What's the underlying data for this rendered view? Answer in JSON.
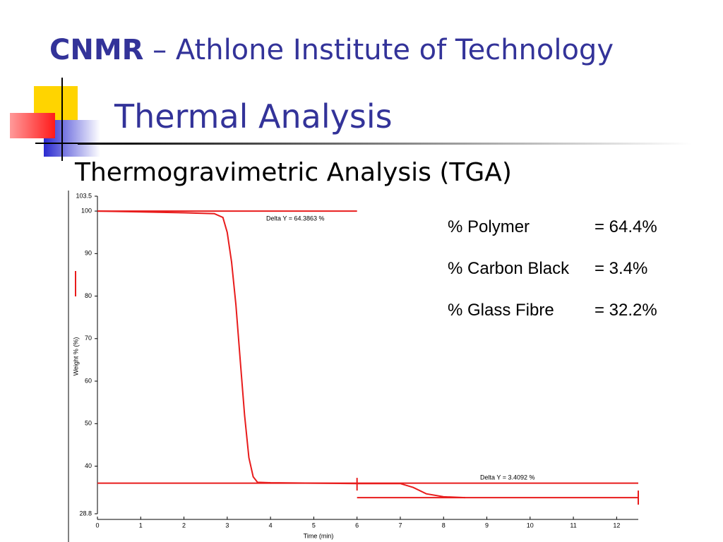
{
  "header": {
    "title_bold": "CNMR",
    "title_rest": "– Athlone Institute of Technology",
    "subtitle": "Thermal Analysis",
    "heading": "Thermogravimetric Analysis (TGA)"
  },
  "results": [
    {
      "label": "% Polymer",
      "value": "= 64.4%"
    },
    {
      "label": "% Carbon Black",
      "value": "= 3.4%"
    },
    {
      "label": "% Glass Fibre",
      "value": "= 32.2%"
    }
  ],
  "chart_data": {
    "type": "line",
    "color": "#e81c1c",
    "xlabel": "Time (min)",
    "ylabel": "Weight % (%)",
    "x": [
      0,
      1,
      2,
      2.7,
      2.9,
      3.0,
      3.1,
      3.2,
      3.3,
      3.4,
      3.5,
      3.6,
      3.7,
      4,
      5,
      6,
      7,
      7.3,
      7.6,
      8,
      8.5
    ],
    "values": [
      100,
      99.8,
      99.6,
      99.4,
      98.5,
      95,
      88,
      78,
      65,
      52,
      42,
      37.5,
      36.2,
      36.1,
      36,
      35.9,
      35.9,
      35,
      33.5,
      32.8,
      32.6
    ],
    "xlim": [
      0,
      12.5
    ],
    "xticks": [
      0,
      1,
      2,
      3,
      4,
      5,
      6,
      7,
      8,
      9,
      10,
      11,
      12
    ],
    "ylim": [
      28.8,
      103.5
    ],
    "yticks": [
      28.8,
      40,
      50,
      60,
      70,
      80,
      90,
      100,
      103.5
    ],
    "reference_lines": [
      {
        "y": 100,
        "x": [
          0,
          6
        ]
      },
      {
        "y": 36,
        "x": [
          0,
          12.5
        ]
      },
      {
        "y": 32.6,
        "x": [
          6,
          12.5
        ]
      }
    ],
    "annotations": [
      "Delta Y = 64.3863 %",
      "Delta Y = 3.4092 %"
    ]
  }
}
